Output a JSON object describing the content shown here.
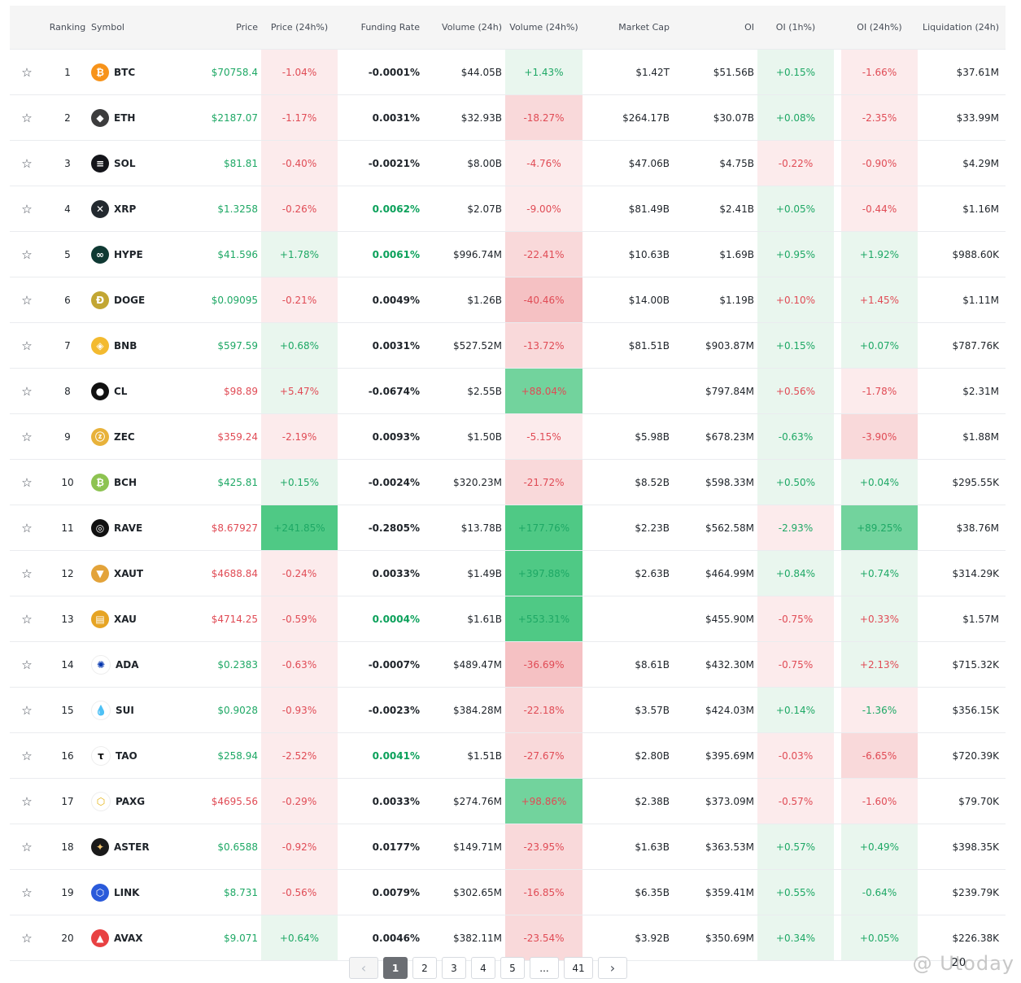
{
  "header": {
    "ranking": "Ranking",
    "symbol": "Symbol",
    "price": "Price",
    "price_chg": "Price (24h%)",
    "funding": "Funding Rate",
    "volume": "Volume (24h)",
    "volume_chg": "Volume (24h%)",
    "market_cap": "Market Cap",
    "oi": "OI",
    "oi_1h": "OI (1h%)",
    "oi_24h": "OI (24h%)",
    "liquidation": "Liquidation (24h)"
  },
  "star_icon": "☆",
  "rows": [
    {
      "rank": "1",
      "icon": "bitcoin-icon",
      "glyph": "₿",
      "color": "#f7931a",
      "symbol": "BTC",
      "price": "$70758.4",
      "price_dir": "up",
      "pchg": "-1.04%",
      "pchg_bg": "r1",
      "pchg_dir": "neg",
      "funding": "-0.0001%",
      "funding_green": false,
      "volume": "$44.05B",
      "vchg": "+1.43%",
      "vchg_bg": "g1",
      "vchg_dir": "pos",
      "mcap": "$1.42T",
      "oi": "$51.56B",
      "oi1h": "+0.15%",
      "oi1h_bg": "g1",
      "oi1h_dir": "pos",
      "oi24": "-1.66%",
      "oi24_bg": "r1",
      "oi24_dir": "neg",
      "liq": "$37.61M"
    },
    {
      "rank": "2",
      "icon": "ethereum-icon",
      "glyph": "◆",
      "color": "#3c3c3d",
      "symbol": "ETH",
      "price": "$2187.07",
      "price_dir": "up",
      "pchg": "-1.17%",
      "pchg_bg": "r1",
      "pchg_dir": "neg",
      "funding": "0.0031%",
      "funding_green": false,
      "volume": "$32.93B",
      "vchg": "-18.27%",
      "vchg_bg": "r2",
      "vchg_dir": "neg",
      "mcap": "$264.17B",
      "oi": "$30.07B",
      "oi1h": "+0.08%",
      "oi1h_bg": "g1",
      "oi1h_dir": "pos",
      "oi24": "-2.35%",
      "oi24_bg": "r1",
      "oi24_dir": "neg",
      "liq": "$33.99M"
    },
    {
      "rank": "3",
      "icon": "solana-icon",
      "glyph": "≡",
      "color": "#14151a",
      "symbol": "SOL",
      "price": "$81.81",
      "price_dir": "up",
      "pchg": "-0.40%",
      "pchg_bg": "r1",
      "pchg_dir": "neg",
      "funding": "-0.0021%",
      "funding_green": false,
      "volume": "$8.00B",
      "vchg": "-4.76%",
      "vchg_bg": "r1",
      "vchg_dir": "neg",
      "mcap": "$47.06B",
      "oi": "$4.75B",
      "oi1h": "-0.22%",
      "oi1h_bg": "r1",
      "oi1h_dir": "neg",
      "oi24": "-0.90%",
      "oi24_bg": "r1",
      "oi24_dir": "neg",
      "liq": "$4.29M"
    },
    {
      "rank": "4",
      "icon": "xrp-icon",
      "glyph": "✕",
      "color": "#23292f",
      "symbol": "XRP",
      "price": "$1.3258",
      "price_dir": "up",
      "pchg": "-0.26%",
      "pchg_bg": "r1",
      "pchg_dir": "neg",
      "funding": "0.0062%",
      "funding_green": true,
      "volume": "$2.07B",
      "vchg": "-9.00%",
      "vchg_bg": "r1",
      "vchg_dir": "neg",
      "mcap": "$81.49B",
      "oi": "$2.41B",
      "oi1h": "+0.05%",
      "oi1h_bg": "g1",
      "oi1h_dir": "pos",
      "oi24": "-0.44%",
      "oi24_bg": "r1",
      "oi24_dir": "neg",
      "liq": "$1.16M"
    },
    {
      "rank": "5",
      "icon": "hyperliquid-icon",
      "glyph": "∞",
      "color": "#0f3933",
      "symbol": "HYPE",
      "price": "$41.596",
      "price_dir": "up",
      "pchg": "+1.78%",
      "pchg_bg": "g1",
      "pchg_dir": "pos",
      "funding": "0.0061%",
      "funding_green": true,
      "volume": "$996.74M",
      "vchg": "-22.41%",
      "vchg_bg": "r2",
      "vchg_dir": "neg",
      "mcap": "$10.63B",
      "oi": "$1.69B",
      "oi1h": "+0.95%",
      "oi1h_bg": "g1",
      "oi1h_dir": "pos",
      "oi24": "+1.92%",
      "oi24_bg": "g1",
      "oi24_dir": "pos",
      "liq": "$988.60K"
    },
    {
      "rank": "6",
      "icon": "dogecoin-icon",
      "glyph": "Ð",
      "color": "#c2a633",
      "symbol": "DOGE",
      "price": "$0.09095",
      "price_dir": "up",
      "pchg": "-0.21%",
      "pchg_bg": "r1",
      "pchg_dir": "neg",
      "funding": "0.0049%",
      "funding_green": false,
      "volume": "$1.26B",
      "vchg": "-40.46%",
      "vchg_bg": "r3",
      "vchg_dir": "neg",
      "mcap": "$14.00B",
      "oi": "$1.19B",
      "oi1h": "+0.10%",
      "oi1h_bg": "g1",
      "oi1h_dir": "neg",
      "oi24": "+1.45%",
      "oi24_bg": "g1",
      "oi24_dir": "neg",
      "liq": "$1.11M"
    },
    {
      "rank": "7",
      "icon": "bnb-icon",
      "glyph": "◈",
      "color": "#f3ba2f",
      "symbol": "BNB",
      "price": "$597.59",
      "price_dir": "up",
      "pchg": "+0.68%",
      "pchg_bg": "g1",
      "pchg_dir": "pos",
      "funding": "0.0031%",
      "funding_green": false,
      "volume": "$527.52M",
      "vchg": "-13.72%",
      "vchg_bg": "r2",
      "vchg_dir": "neg",
      "mcap": "$81.51B",
      "oi": "$903.87M",
      "oi1h": "+0.15%",
      "oi1h_bg": "g1",
      "oi1h_dir": "pos",
      "oi24": "+0.07%",
      "oi24_bg": "g1",
      "oi24_dir": "pos",
      "liq": "$787.76K"
    },
    {
      "rank": "8",
      "icon": "oil-drop-icon",
      "glyph": "●",
      "color": "#111111",
      "symbol": "CL",
      "price": "$98.89",
      "price_dir": "down",
      "pchg": "+5.47%",
      "pchg_bg": "g1",
      "pchg_dir": "neg",
      "funding": "-0.0674%",
      "funding_green": false,
      "volume": "$2.55B",
      "vchg": "+88.04%",
      "vchg_bg": "g3",
      "vchg_dir": "neg",
      "mcap": "",
      "oi": "$797.84M",
      "oi1h": "+0.56%",
      "oi1h_bg": "g1",
      "oi1h_dir": "neg",
      "oi24": "-1.78%",
      "oi24_bg": "r1",
      "oi24_dir": "neg",
      "liq": "$2.31M"
    },
    {
      "rank": "9",
      "icon": "zcash-icon",
      "glyph": "ⓩ",
      "color": "#e8b23a",
      "symbol": "ZEC",
      "price": "$359.24",
      "price_dir": "down",
      "pchg": "-2.19%",
      "pchg_bg": "r1",
      "pchg_dir": "neg",
      "funding": "0.0093%",
      "funding_green": false,
      "volume": "$1.50B",
      "vchg": "-5.15%",
      "vchg_bg": "r1",
      "vchg_dir": "neg",
      "mcap": "$5.98B",
      "oi": "$678.23M",
      "oi1h": "-0.63%",
      "oi1h_bg": "g1",
      "oi1h_dir": "pos",
      "oi24": "-3.90%",
      "oi24_bg": "r2",
      "oi24_dir": "neg",
      "liq": "$1.88M"
    },
    {
      "rank": "10",
      "icon": "bitcoin-cash-icon",
      "glyph": "₿",
      "color": "#8dc351",
      "symbol": "BCH",
      "price": "$425.81",
      "price_dir": "up",
      "pchg": "+0.15%",
      "pchg_bg": "g1",
      "pchg_dir": "pos",
      "funding": "-0.0024%",
      "funding_green": false,
      "volume": "$320.23M",
      "vchg": "-21.72%",
      "vchg_bg": "r2",
      "vchg_dir": "neg",
      "mcap": "$8.52B",
      "oi": "$598.33M",
      "oi1h": "+0.50%",
      "oi1h_bg": "g1",
      "oi1h_dir": "pos",
      "oi24": "+0.04%",
      "oi24_bg": "g1",
      "oi24_dir": "pos",
      "liq": "$295.55K"
    },
    {
      "rank": "11",
      "icon": "rave-icon",
      "glyph": "◎",
      "color": "#111111",
      "symbol": "RAVE",
      "price": "$8.67927",
      "price_dir": "down",
      "pchg": "+241.85%",
      "pchg_bg": "g4",
      "pchg_dir": "pos",
      "funding": "-0.2805%",
      "funding_green": false,
      "volume": "$13.78B",
      "vchg": "+177.76%",
      "vchg_bg": "g4",
      "vchg_dir": "pos",
      "mcap": "$2.23B",
      "oi": "$562.58M",
      "oi1h": "-2.93%",
      "oi1h_bg": "r1",
      "oi1h_dir": "pos",
      "oi24": "+89.25%",
      "oi24_bg": "g3",
      "oi24_dir": "pos",
      "liq": "$38.76M"
    },
    {
      "rank": "12",
      "icon": "tether-gold-icon",
      "glyph": "▼",
      "color": "#e3a33a",
      "symbol": "XAUT",
      "price": "$4688.84",
      "price_dir": "down",
      "pchg": "-0.24%",
      "pchg_bg": "r1",
      "pchg_dir": "neg",
      "funding": "0.0033%",
      "funding_green": false,
      "volume": "$1.49B",
      "vchg": "+397.88%",
      "vchg_bg": "g4",
      "vchg_dir": "pos",
      "mcap": "$2.63B",
      "oi": "$464.99M",
      "oi1h": "+0.84%",
      "oi1h_bg": "g1",
      "oi1h_dir": "pos",
      "oi24": "+0.74%",
      "oi24_bg": "g1",
      "oi24_dir": "pos",
      "liq": "$314.29K"
    },
    {
      "rank": "13",
      "icon": "gold-bars-icon",
      "glyph": "▤",
      "color": "#e6a423",
      "symbol": "XAU",
      "price": "$4714.25",
      "price_dir": "down",
      "pchg": "-0.59%",
      "pchg_bg": "r1",
      "pchg_dir": "neg",
      "funding": "0.0004%",
      "funding_green": true,
      "volume": "$1.61B",
      "vchg": "+553.31%",
      "vchg_bg": "g4",
      "vchg_dir": "pos",
      "mcap": "",
      "oi": "$455.90M",
      "oi1h": "-0.75%",
      "oi1h_bg": "r1",
      "oi1h_dir": "neg",
      "oi24": "+0.33%",
      "oi24_bg": "g1",
      "oi24_dir": "neg",
      "liq": "$1.57M"
    },
    {
      "rank": "14",
      "icon": "cardano-icon",
      "glyph": "✺",
      "color": "#ffffff",
      "glyph_color": "#0033ad",
      "symbol": "ADA",
      "price": "$0.2383",
      "price_dir": "up",
      "pchg": "-0.63%",
      "pchg_bg": "r1",
      "pchg_dir": "neg",
      "funding": "-0.0007%",
      "funding_green": false,
      "volume": "$489.47M",
      "vchg": "-36.69%",
      "vchg_bg": "r3",
      "vchg_dir": "neg",
      "mcap": "$8.61B",
      "oi": "$432.30M",
      "oi1h": "-0.75%",
      "oi1h_bg": "r1",
      "oi1h_dir": "neg",
      "oi24": "+2.13%",
      "oi24_bg": "g1",
      "oi24_dir": "neg",
      "liq": "$715.32K"
    },
    {
      "rank": "15",
      "icon": "sui-icon",
      "glyph": "💧",
      "color": "#ffffff",
      "glyph_color": "#4da2ff",
      "symbol": "SUI",
      "price": "$0.9028",
      "price_dir": "up",
      "pchg": "-0.93%",
      "pchg_bg": "r1",
      "pchg_dir": "neg",
      "funding": "-0.0023%",
      "funding_green": false,
      "volume": "$384.28M",
      "vchg": "-22.18%",
      "vchg_bg": "r2",
      "vchg_dir": "neg",
      "mcap": "$3.57B",
      "oi": "$424.03M",
      "oi1h": "+0.14%",
      "oi1h_bg": "g1",
      "oi1h_dir": "pos",
      "oi24": "-1.36%",
      "oi24_bg": "r1",
      "oi24_dir": "pos",
      "liq": "$356.15K"
    },
    {
      "rank": "16",
      "icon": "bittensor-icon",
      "glyph": "τ",
      "color": "#ffffff",
      "glyph_color": "#111111",
      "symbol": "TAO",
      "price": "$258.94",
      "price_dir": "up",
      "pchg": "-2.52%",
      "pchg_bg": "r1",
      "pchg_dir": "neg",
      "funding": "0.0041%",
      "funding_green": true,
      "volume": "$1.51B",
      "vchg": "-27.67%",
      "vchg_bg": "r2",
      "vchg_dir": "neg",
      "mcap": "$2.80B",
      "oi": "$395.69M",
      "oi1h": "-0.03%",
      "oi1h_bg": "r1",
      "oi1h_dir": "neg",
      "oi24": "-6.65%",
      "oi24_bg": "r2",
      "oi24_dir": "neg",
      "liq": "$720.39K"
    },
    {
      "rank": "17",
      "icon": "pax-gold-icon",
      "glyph": "⬡",
      "color": "#ffffff",
      "glyph_color": "#e4b00c",
      "symbol": "PAXG",
      "price": "$4695.56",
      "price_dir": "down",
      "pchg": "-0.29%",
      "pchg_bg": "r1",
      "pchg_dir": "neg",
      "funding": "0.0033%",
      "funding_green": false,
      "volume": "$274.76M",
      "vchg": "+98.86%",
      "vchg_bg": "g3",
      "vchg_dir": "neg",
      "mcap": "$2.38B",
      "oi": "$373.09M",
      "oi1h": "-0.57%",
      "oi1h_bg": "r1",
      "oi1h_dir": "neg",
      "oi24": "-1.60%",
      "oi24_bg": "r1",
      "oi24_dir": "neg",
      "liq": "$79.70K"
    },
    {
      "rank": "18",
      "icon": "aster-icon",
      "glyph": "✦",
      "color": "#1a1a1a",
      "glyph_color": "#f2c46d",
      "symbol": "ASTER",
      "price": "$0.6588",
      "price_dir": "up",
      "pchg": "-0.92%",
      "pchg_bg": "r1",
      "pchg_dir": "neg",
      "funding": "0.0177%",
      "funding_green": false,
      "volume": "$149.71M",
      "vchg": "-23.95%",
      "vchg_bg": "r2",
      "vchg_dir": "neg",
      "mcap": "$1.63B",
      "oi": "$363.53M",
      "oi1h": "+0.57%",
      "oi1h_bg": "g1",
      "oi1h_dir": "pos",
      "oi24": "+0.49%",
      "oi24_bg": "g1",
      "oi24_dir": "pos",
      "liq": "$398.35K"
    },
    {
      "rank": "19",
      "icon": "chainlink-icon",
      "glyph": "⬡",
      "color": "#2a5ada",
      "symbol": "LINK",
      "price": "$8.731",
      "price_dir": "up",
      "pchg": "-0.56%",
      "pchg_bg": "r1",
      "pchg_dir": "neg",
      "funding": "0.0079%",
      "funding_green": false,
      "volume": "$302.65M",
      "vchg": "-16.85%",
      "vchg_bg": "r2",
      "vchg_dir": "neg",
      "mcap": "$6.35B",
      "oi": "$359.41M",
      "oi1h": "+0.55%",
      "oi1h_bg": "g1",
      "oi1h_dir": "pos",
      "oi24": "-0.64%",
      "oi24_bg": "g1",
      "oi24_dir": "pos",
      "liq": "$239.79K"
    },
    {
      "rank": "20",
      "icon": "avalanche-icon",
      "glyph": "▲",
      "color": "#e84142",
      "symbol": "AVAX",
      "price": "$9.071",
      "price_dir": "up",
      "pchg": "+0.64%",
      "pchg_bg": "g1",
      "pchg_dir": "pos",
      "funding": "0.0046%",
      "funding_green": false,
      "volume": "$382.11M",
      "vchg": "-23.54%",
      "vchg_bg": "r2",
      "vchg_dir": "neg",
      "mcap": "$3.92B",
      "oi": "$350.69M",
      "oi1h": "+0.34%",
      "oi1h_bg": "g1",
      "oi1h_dir": "pos",
      "oi24": "+0.05%",
      "oi24_bg": "g1",
      "oi24_dir": "pos",
      "liq": "$226.38K"
    }
  ],
  "pagination": {
    "prev_icon": "‹",
    "pages": [
      "1",
      "2",
      "3",
      "4",
      "5",
      "...",
      "41"
    ],
    "active": "1",
    "next_icon": "›"
  },
  "watermark": {
    "text": "@ Utoday",
    "page_size": "20"
  }
}
